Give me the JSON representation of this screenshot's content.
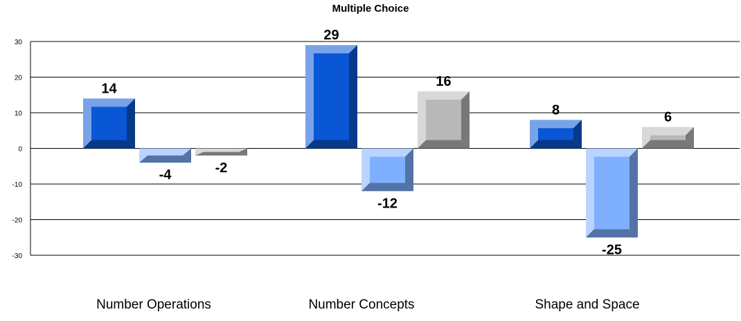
{
  "chart_data": {
    "type": "bar",
    "title": "Multiple Choice",
    "categories": [
      "Number Operations",
      "Number Concepts",
      "Shape and Space"
    ],
    "series": [
      {
        "values": [
          14,
          29,
          8
        ],
        "color": "#0a57d6"
      },
      {
        "values": [
          -4,
          -12,
          -25
        ],
        "color": "#7fb0ff"
      },
      {
        "values": [
          -2,
          16,
          6
        ],
        "color": "#b8b8b8"
      }
    ],
    "ylim": [
      -30,
      30
    ],
    "yticks": [
      30,
      20,
      10,
      0,
      -10,
      -20,
      -30
    ],
    "grid": true,
    "xlabel": "",
    "ylabel": ""
  }
}
